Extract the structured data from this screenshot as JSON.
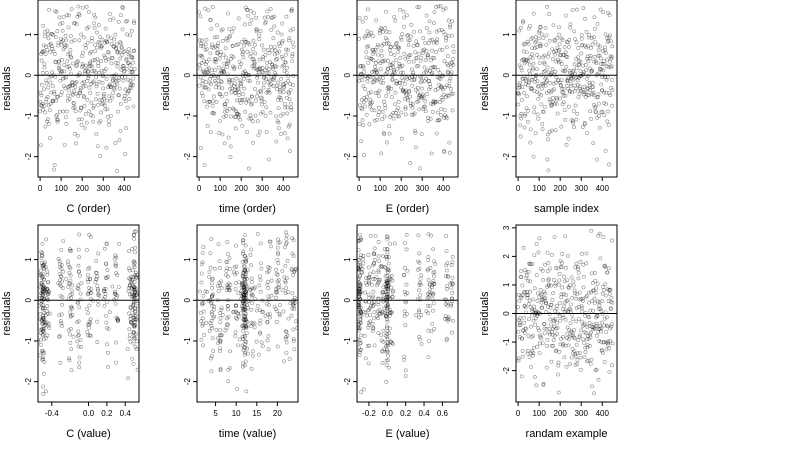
{
  "chart_data": [
    {
      "type": "scatter",
      "xlabel": "C (order)",
      "ylabel": "residuals",
      "xticks": [
        0,
        100,
        200,
        300,
        400
      ],
      "xlim": [
        -10,
        470
      ],
      "yticks": [
        -2,
        -1,
        0,
        1
      ],
      "ylim": [
        -2.5,
        1.85
      ],
      "hline": 0,
      "gen": {
        "mode": "order",
        "n": 450,
        "seed": 11
      }
    },
    {
      "type": "scatter",
      "xlabel": "time (order)",
      "ylabel": "residuals",
      "xticks": [
        0,
        100,
        200,
        300,
        400
      ],
      "xlim": [
        -10,
        470
      ],
      "yticks": [
        -2,
        -1,
        0,
        1
      ],
      "ylim": [
        -2.5,
        1.85
      ],
      "hline": 0,
      "gen": {
        "mode": "order",
        "n": 450,
        "seed": 23
      }
    },
    {
      "type": "scatter",
      "xlabel": "E (order)",
      "ylabel": "residuals",
      "xticks": [
        0,
        100,
        200,
        300,
        400
      ],
      "xlim": [
        -10,
        470
      ],
      "yticks": [
        -2,
        -1,
        0,
        1
      ],
      "ylim": [
        -2.5,
        1.85
      ],
      "hline": 0,
      "gen": {
        "mode": "order",
        "n": 450,
        "seed": 37
      }
    },
    {
      "type": "scatter",
      "xlabel": "sample index",
      "ylabel": "residuals",
      "xticks": [
        0,
        100,
        200,
        300,
        400
      ],
      "xlim": [
        -10,
        470
      ],
      "yticks": [
        -2,
        -1,
        0,
        1
      ],
      "ylim": [
        -2.5,
        1.85
      ],
      "hline": 0,
      "gen": {
        "mode": "order",
        "n": 450,
        "seed": 41
      }
    },
    {
      "type": "scatter",
      "xlabel": "C (value)",
      "ylabel": "residuals",
      "xticks": [
        -0.4,
        0.0,
        0.2,
        0.4
      ],
      "xtick_labels": [
        "-0.4",
        "0.0",
        "0.2",
        "0.4"
      ],
      "xlim": [
        -0.55,
        0.55
      ],
      "yticks": [
        -2,
        -1,
        0,
        1
      ],
      "ylim": [
        -2.5,
        1.85
      ],
      "hline": 0,
      "gen": {
        "mode": "cluster",
        "n": 450,
        "seed": 53,
        "centers": [
          -0.5,
          -0.45,
          -0.3,
          -0.2,
          -0.1,
          0.0,
          0.1,
          0.2,
          0.3,
          0.45,
          0.5
        ],
        "spread": 0.015,
        "pulls": [
          -0.5,
          0.5
        ]
      }
    },
    {
      "type": "scatter",
      "xlabel": "time (value)",
      "ylabel": "residuals",
      "xticks": [
        5,
        10,
        15,
        20
      ],
      "xlim": [
        0.5,
        25
      ],
      "yticks": [
        -2,
        -1,
        0,
        1
      ],
      "ylim": [
        -2.5,
        1.85
      ],
      "hline": 0,
      "gen": {
        "mode": "cluster",
        "n": 450,
        "seed": 67,
        "centers": [
          2,
          4,
          6,
          8,
          10,
          12,
          14,
          16,
          18,
          20,
          22,
          24
        ],
        "spread": 0.35,
        "pulls": [
          12
        ]
      }
    },
    {
      "type": "scatter",
      "xlabel": "E (value)",
      "ylabel": "residuals",
      "xticks": [
        -0.2,
        0.0,
        0.2,
        0.4,
        0.6
      ],
      "xtick_labels": [
        "-0.2",
        "0.0",
        "0.2",
        "0.4",
        "0.6"
      ],
      "xlim": [
        -0.33,
        0.77
      ],
      "yticks": [
        -2,
        -1,
        0,
        1
      ],
      "ylim": [
        -2.5,
        1.85
      ],
      "hline": 0,
      "gen": {
        "mode": "cluster",
        "n": 450,
        "seed": 79,
        "centers": [
          -0.3,
          -0.25,
          -0.2,
          -0.15,
          -0.1,
          -0.05,
          0.0,
          0.05,
          0.2,
          0.35,
          0.45,
          0.5,
          0.65,
          0.7
        ],
        "spread": 0.012,
        "pulls": [
          -0.3,
          0.0
        ]
      }
    },
    {
      "type": "scatter",
      "xlabel": "randam example",
      "ylabel": "residuals",
      "xticks": [
        0,
        100,
        200,
        300,
        400
      ],
      "xlim": [
        -10,
        470
      ],
      "yticks": [
        -2,
        -1,
        0,
        1,
        2,
        3
      ],
      "ylim": [
        -3.1,
        3.1
      ],
      "hline": 0,
      "gen": {
        "mode": "order",
        "n": 450,
        "seed": 97,
        "sd": 1.1
      }
    }
  ]
}
